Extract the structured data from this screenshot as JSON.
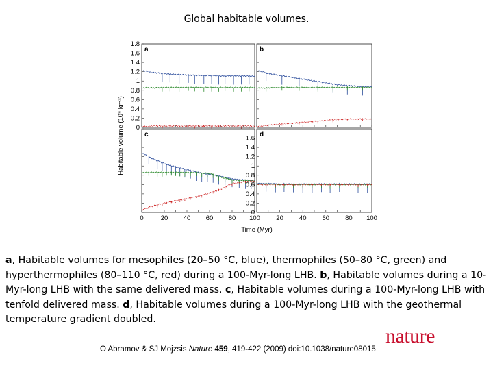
{
  "slide": {
    "title": "Global habitable volumes."
  },
  "caption": {
    "part_a_label": "a",
    "part_a_text": ", Habitable volumes for mesophiles (20–50 °C, blue), thermophiles (50–80 °C, green) and hyperthermophiles (80–110 °C, red) during a 100-Myr-long LHB. ",
    "part_b_label": "b",
    "part_b_text": ", Habitable volumes during a 10-Myr-long LHB with the same delivered mass. ",
    "part_c_label": "c",
    "part_c_text": ", Habitable volumes during a 100-Myr-long LHB with tenfold delivered mass. ",
    "part_d_label": "d",
    "part_d_text": ", Habitable volumes during a 100-Myr-long LHB with the geothermal temperature gradient doubled."
  },
  "citation": {
    "prefix": "O Abramov & SJ Mojzsis ",
    "journal": "Nature",
    "volume": "459",
    "suffix": ", 419-422 (2009) doi:10.1038/nature08015"
  },
  "logo": {
    "text": "nature"
  },
  "colors": {
    "mesophiles": "#2b4c9b",
    "thermophiles": "#2e8b2e",
    "hyperthermophiles": "#cc2222",
    "logo": "#c8102e"
  },
  "chart_data": [
    {
      "type": "line",
      "panel": "a",
      "xlim": [
        0,
        100
      ],
      "ylim": [
        0,
        1.8
      ],
      "yticks": [
        "0",
        "0.2",
        "0.4",
        "0.6",
        "0.8",
        "1",
        "1.2",
        "1.4",
        "1.6",
        "1.8"
      ],
      "series": [
        {
          "color": "#2b4c9b",
          "x": [
            0,
            5,
            10,
            20,
            30,
            40,
            50,
            60,
            70,
            80,
            90,
            100
          ],
          "y": [
            1.22,
            1.21,
            1.18,
            1.16,
            1.14,
            1.13,
            1.12,
            1.12,
            1.11,
            1.11,
            1.11,
            1.1
          ]
        },
        {
          "color": "#2e8b2e",
          "x": [
            0,
            5,
            10,
            20,
            30,
            40,
            50,
            60,
            70,
            80,
            90,
            100
          ],
          "y": [
            0.85,
            0.86,
            0.85,
            0.86,
            0.86,
            0.86,
            0.86,
            0.86,
            0.86,
            0.86,
            0.86,
            0.86
          ]
        },
        {
          "color": "#cc2222",
          "x": [
            0,
            5,
            10,
            20,
            30,
            40,
            50,
            60,
            70,
            80,
            90,
            100
          ],
          "y": [
            0.02,
            0.02,
            0.03,
            0.03,
            0.03,
            0.03,
            0.03,
            0.03,
            0.03,
            0.03,
            0.03,
            0.03
          ]
        }
      ],
      "spike_years": [
        12,
        18,
        25,
        33,
        41,
        47,
        55,
        62,
        68,
        74,
        81,
        88,
        95
      ]
    },
    {
      "type": "line",
      "panel": "b",
      "xlim": [
        0,
        100
      ],
      "ylim": [
        0,
        1.8
      ],
      "series": [
        {
          "color": "#2b4c9b",
          "x": [
            0,
            5,
            10,
            20,
            30,
            40,
            50,
            60,
            70,
            80,
            90,
            100
          ],
          "y": [
            1.22,
            1.2,
            1.16,
            1.12,
            1.08,
            1.04,
            1.0,
            0.96,
            0.92,
            0.9,
            0.88,
            0.88
          ]
        },
        {
          "color": "#2e8b2e",
          "x": [
            0,
            5,
            10,
            20,
            30,
            40,
            50,
            60,
            70,
            80,
            90,
            100
          ],
          "y": [
            0.85,
            0.85,
            0.85,
            0.86,
            0.86,
            0.86,
            0.86,
            0.86,
            0.86,
            0.86,
            0.86,
            0.86
          ]
        },
        {
          "color": "#cc2222",
          "x": [
            0,
            5,
            10,
            20,
            30,
            40,
            50,
            60,
            70,
            80,
            90,
            100
          ],
          "y": [
            0.02,
            0.03,
            0.05,
            0.07,
            0.09,
            0.11,
            0.13,
            0.15,
            0.17,
            0.18,
            0.18,
            0.18
          ]
        }
      ],
      "spike_years": [
        8,
        22,
        37,
        53,
        66,
        79,
        92
      ]
    },
    {
      "type": "line",
      "panel": "c",
      "xlim": [
        0,
        100
      ],
      "ylim": [
        0,
        1.8
      ],
      "series": [
        {
          "color": "#2b4c9b",
          "x": [
            0,
            5,
            10,
            20,
            30,
            40,
            50,
            60,
            70,
            75,
            80,
            90,
            100
          ],
          "y": [
            1.28,
            1.22,
            1.15,
            1.05,
            0.98,
            0.92,
            0.86,
            0.82,
            0.78,
            0.75,
            0.72,
            0.7,
            0.68
          ]
        },
        {
          "color": "#2e8b2e",
          "x": [
            0,
            5,
            10,
            20,
            30,
            40,
            50,
            60,
            70,
            75,
            80,
            90,
            100
          ],
          "y": [
            0.86,
            0.86,
            0.86,
            0.86,
            0.86,
            0.86,
            0.85,
            0.84,
            0.76,
            0.73,
            0.7,
            0.69,
            0.68
          ]
        },
        {
          "color": "#cc2222",
          "x": [
            0,
            5,
            10,
            20,
            30,
            40,
            50,
            60,
            70,
            75,
            80,
            90,
            100
          ],
          "y": [
            0.05,
            0.1,
            0.14,
            0.2,
            0.25,
            0.3,
            0.35,
            0.42,
            0.5,
            0.56,
            0.62,
            0.66,
            0.68
          ]
        }
      ],
      "spike_years": [
        6,
        10,
        14,
        18,
        22,
        26,
        30,
        34,
        38,
        43,
        48,
        53,
        58,
        63,
        68,
        74,
        80,
        86,
        92,
        97
      ]
    },
    {
      "type": "line",
      "panel": "d",
      "xlim": [
        0,
        100
      ],
      "ylim": [
        0,
        1.8
      ],
      "yticks": [
        "0",
        "0.2",
        "0.4",
        "0.6",
        "0.8",
        "1",
        "1.2",
        "1.4",
        "1.6"
      ],
      "xticks": [
        "0",
        "20",
        "40",
        "60",
        "80",
        "100"
      ],
      "xlabel": "Time (Myr)",
      "series": [
        {
          "color": "#2b4c9b",
          "x": [
            0,
            10,
            20,
            30,
            40,
            50,
            60,
            70,
            80,
            90,
            100
          ],
          "y": [
            0.62,
            0.62,
            0.61,
            0.61,
            0.61,
            0.61,
            0.61,
            0.61,
            0.61,
            0.61,
            0.61
          ]
        },
        {
          "color": "#2e8b2e",
          "x": [
            0,
            10,
            20,
            30,
            40,
            50,
            60,
            70,
            80,
            90,
            100
          ],
          "y": [
            0.61,
            0.61,
            0.6,
            0.6,
            0.6,
            0.6,
            0.6,
            0.6,
            0.6,
            0.6,
            0.6
          ]
        },
        {
          "color": "#cc2222",
          "x": [
            0,
            10,
            20,
            30,
            40,
            50,
            60,
            70,
            80,
            90,
            100
          ],
          "y": [
            0.6,
            0.6,
            0.6,
            0.6,
            0.6,
            0.6,
            0.6,
            0.6,
            0.6,
            0.6,
            0.6
          ]
        }
      ],
      "spike_years": [
        8,
        16,
        24,
        32,
        40,
        48,
        56,
        64,
        72,
        80,
        88,
        96
      ]
    }
  ],
  "figure": {
    "ylabel": "Habitable volume (10⁹ km³)"
  }
}
